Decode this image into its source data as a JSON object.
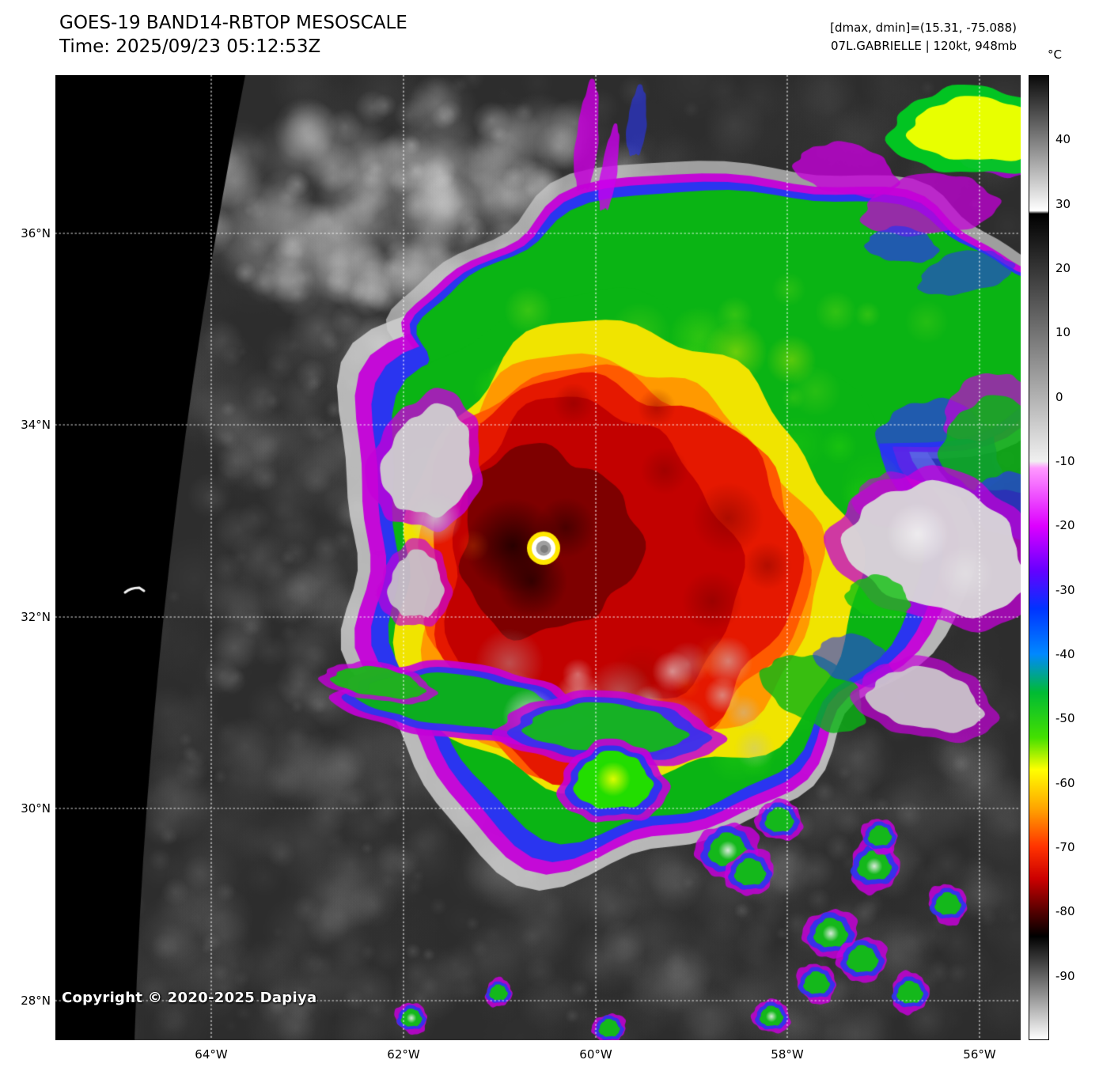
{
  "header": {
    "title": "GOES-19 BAND14-RBTOP MESOSCALE",
    "time": "Time: 2025/09/23 05:12:53Z"
  },
  "info": {
    "range": "[dmax, dmin]=(15.31, -75.088)",
    "storm": "07L.GABRIELLE | 120kt, 948mb"
  },
  "colorbar": {
    "unit": "°C",
    "ticks": [
      "40",
      "30",
      "20",
      "10",
      "0",
      "-10",
      "-20",
      "-30",
      "-40",
      "-50",
      "-60",
      "-70",
      "-80",
      "-90"
    ],
    "palette": {
      "warm_gray_top": "#aaaaaa",
      "cold_white": "#f0f0f0",
      "magenta": "#dd00ff",
      "blue": "#0033ff",
      "green": "#00bb33",
      "yellow": "#ffff00",
      "orange": "#ffa500",
      "red": "#ff3300",
      "dark_red": "#550000",
      "coldest_gray": "#888888"
    }
  },
  "axes": {
    "lat": [
      "36°N",
      "34°N",
      "32°N",
      "30°N",
      "28°N"
    ],
    "lon": [
      "64°W",
      "62°W",
      "60°W",
      "58°W",
      "56°W"
    ]
  },
  "copyright": {
    "text": "Copyright © 2020-2025 Dapiya"
  }
}
